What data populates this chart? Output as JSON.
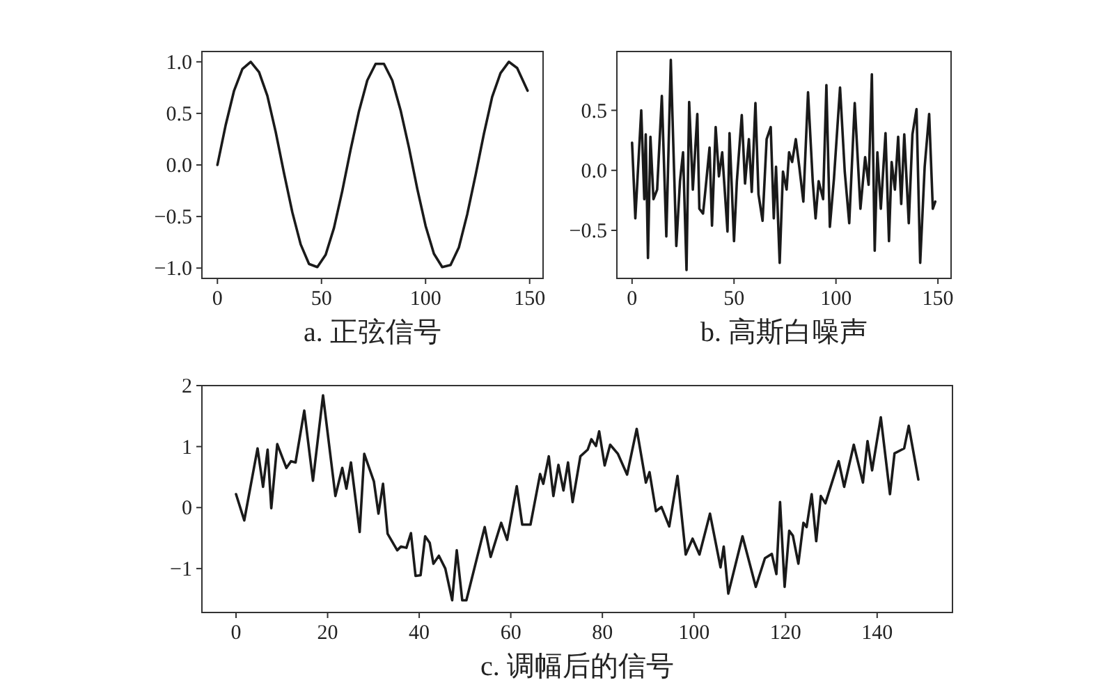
{
  "chart_data": [
    {
      "type": "line",
      "xlabel": "a. 正弦信号",
      "xlim": [
        -7.45,
        156.45
      ],
      "ylim": [
        -1.1,
        1.1
      ],
      "xticks": [
        0,
        50,
        100,
        150
      ],
      "yticks": [
        {
          "value": -1.0,
          "label": "−1.0"
        },
        {
          "value": -0.5,
          "label": "−0.5"
        },
        {
          "value": 0.0,
          "label": "0.0"
        },
        {
          "value": 0.5,
          "label": "0.5"
        },
        {
          "value": 1.0,
          "label": "1.0"
        }
      ],
      "x": [
        0,
        4,
        8,
        12,
        16,
        20,
        24,
        28,
        32,
        36,
        40,
        44,
        48,
        52,
        56,
        60,
        64,
        68,
        72,
        76,
        80,
        84,
        88,
        92,
        96,
        100,
        104,
        108,
        112,
        116,
        120,
        124,
        128,
        132,
        136,
        140,
        144,
        149
      ],
      "series": [
        {
          "color": "#1a1a1a",
          "values": [
            0,
            0.39,
            0.72,
            0.93,
            1.0,
            0.9,
            0.67,
            0.32,
            -0.08,
            -0.46,
            -0.77,
            -0.96,
            -0.99,
            -0.87,
            -0.61,
            -0.25,
            0.15,
            0.52,
            0.82,
            0.98,
            0.98,
            0.82,
            0.53,
            0.17,
            -0.23,
            -0.59,
            -0.86,
            -0.99,
            -0.97,
            -0.8,
            -0.48,
            -0.1,
            0.3,
            0.66,
            0.89,
            1.0,
            0.94,
            0.72
          ]
        }
      ]
    },
    {
      "type": "line",
      "xlabel": "b. 高斯白噪声",
      "xlim": [
        -7.45,
        156.45
      ],
      "ylim": [
        -0.9,
        0.99
      ],
      "xticks": [
        0,
        50,
        100,
        150
      ],
      "yticks": [
        {
          "value": -0.5,
          "label": "−0.5"
        },
        {
          "value": 0.0,
          "label": "0.0"
        },
        {
          "value": 0.5,
          "label": "0.5"
        }
      ],
      "x": [
        0,
        1.6,
        4.5,
        6,
        6.7,
        7.8,
        9,
        10.5,
        12.3,
        14.6,
        16.8,
        19,
        21.7,
        23.5,
        25,
        26.7,
        28,
        29.8,
        32,
        33,
        34.8,
        36,
        38,
        39.2,
        41,
        42.6,
        44.2,
        46.8,
        47.8,
        50,
        51.4,
        53.8,
        55.4,
        57.3,
        58.7,
        60.5,
        62,
        64,
        66,
        68,
        69.5,
        70.6,
        72.4,
        74,
        75.8,
        77,
        78.5,
        80.3,
        82,
        84,
        86.3,
        88.6,
        90,
        91.5,
        93.7,
        95.3,
        97,
        99,
        102,
        104.3,
        106.5,
        109.2,
        112,
        114.3,
        116,
        117.6,
        119,
        120.3,
        122,
        124.3,
        126,
        127.3,
        128.9,
        130.5,
        132,
        133.5,
        135.7,
        137.5,
        139.5,
        141.3,
        143.5,
        145.7,
        147.5,
        148.7
      ],
      "series": [
        {
          "color": "#1a1a1a",
          "values": [
            0.23,
            -0.4,
            0.5,
            -0.24,
            0.3,
            -0.73,
            0.28,
            -0.24,
            -0.16,
            0.62,
            -0.55,
            0.92,
            -0.63,
            -0.09,
            0.15,
            -0.83,
            0.57,
            -0.16,
            0.47,
            -0.32,
            -0.36,
            -0.16,
            0.19,
            -0.46,
            0.36,
            -0.05,
            0.15,
            -0.51,
            0.31,
            -0.59,
            -0.09,
            0.46,
            -0.11,
            0.26,
            -0.18,
            0.56,
            -0.2,
            -0.42,
            0.26,
            0.36,
            -0.4,
            0.03,
            -0.77,
            -0.01,
            -0.16,
            0.15,
            0.07,
            0.26,
            0.03,
            -0.26,
            0.65,
            -0.09,
            -0.4,
            -0.09,
            -0.24,
            0.71,
            -0.47,
            -0.07,
            0.69,
            -0.01,
            -0.44,
            0.56,
            -0.32,
            0.11,
            -0.12,
            0.8,
            -0.67,
            0.15,
            -0.32,
            0.31,
            -0.59,
            0.07,
            -0.16,
            0.28,
            -0.28,
            0.3,
            -0.44,
            0.3,
            0.51,
            -0.77,
            0.03,
            0.47,
            -0.32,
            -0.26
          ]
        }
      ]
    },
    {
      "type": "line",
      "xlabel": "c. 调幅后的信号",
      "xlim": [
        -7.45,
        156.45
      ],
      "ylim": [
        -1.72,
        2.0
      ],
      "xticks": [
        0,
        20,
        40,
        60,
        80,
        100,
        120,
        140
      ],
      "yticks": [
        {
          "value": -1,
          "label": "−1"
        },
        0,
        1,
        2
      ],
      "x": [
        0,
        1.8,
        4.7,
        5.9,
        6.9,
        7.7,
        9,
        11,
        12,
        13,
        14.9,
        16.8,
        19,
        21.7,
        23.2,
        24.1,
        25.1,
        27,
        28,
        30.1,
        31.1,
        32.1,
        33.1,
        35.2,
        36,
        37.2,
        38.2,
        39.2,
        40.3,
        41.3,
        42.3,
        43.1,
        44.3,
        45.7,
        47.2,
        48.2,
        49.4,
        50.3,
        54.3,
        55.6,
        57.9,
        59.2,
        61.3,
        62.5,
        64.3,
        66.4,
        67.1,
        68.3,
        69.3,
        70.4,
        71.5,
        72.5,
        73.5,
        75.2,
        76.8,
        77.6,
        78.6,
        79.3,
        80.5,
        81.7,
        83.4,
        85.4,
        87.5,
        89.5,
        90.3,
        91.7,
        92.9,
        94.6,
        96.4,
        98.2,
        99.7,
        101.2,
        103.5,
        105.8,
        106.5,
        107.5,
        110.6,
        113.5,
        115.5,
        117,
        118,
        118.8,
        119.8,
        120.8,
        121.6,
        122.8,
        123.9,
        124.6,
        125.7,
        126.7,
        127.7,
        128.7,
        131.6,
        132.8,
        134.9,
        136.9,
        137.9,
        138.9,
        140.8,
        142.8,
        143.8,
        145.9,
        146.9,
        149
      ],
      "series": [
        {
          "color": "#1a1a1a",
          "values": [
            0.22,
            -0.21,
            0.97,
            0.34,
            0.95,
            -0.01,
            1.04,
            0.65,
            0.76,
            0.74,
            1.59,
            0.44,
            1.84,
            0.19,
            0.65,
            0.31,
            0.74,
            -0.4,
            0.88,
            0.43,
            -0.1,
            0.39,
            -0.43,
            -0.7,
            -0.64,
            -0.66,
            -0.42,
            -1.12,
            -1.11,
            -0.47,
            -0.58,
            -0.92,
            -0.79,
            -1.0,
            -1.52,
            -0.7,
            -1.52,
            -1.52,
            -0.32,
            -0.81,
            -0.25,
            -0.53,
            0.35,
            -0.28,
            -0.28,
            0.55,
            0.39,
            0.84,
            0.19,
            0.7,
            0.28,
            0.74,
            0.09,
            0.84,
            0.95,
            1.12,
            1.01,
            1.25,
            0.69,
            1.03,
            0.88,
            0.54,
            1.29,
            0.41,
            0.58,
            -0.06,
            0.01,
            -0.31,
            0.52,
            -0.77,
            -0.51,
            -0.77,
            -0.1,
            -0.98,
            -0.64,
            -1.41,
            -0.47,
            -1.3,
            -0.83,
            -0.76,
            -1.09,
            0.09,
            -1.3,
            -0.38,
            -0.46,
            -0.92,
            -0.25,
            -0.32,
            0.22,
            -0.55,
            0.19,
            0.07,
            0.76,
            0.34,
            1.03,
            0.41,
            1.09,
            0.61,
            1.48,
            0.22,
            0.89,
            0.97,
            1.34,
            0.46
          ]
        }
      ]
    }
  ]
}
